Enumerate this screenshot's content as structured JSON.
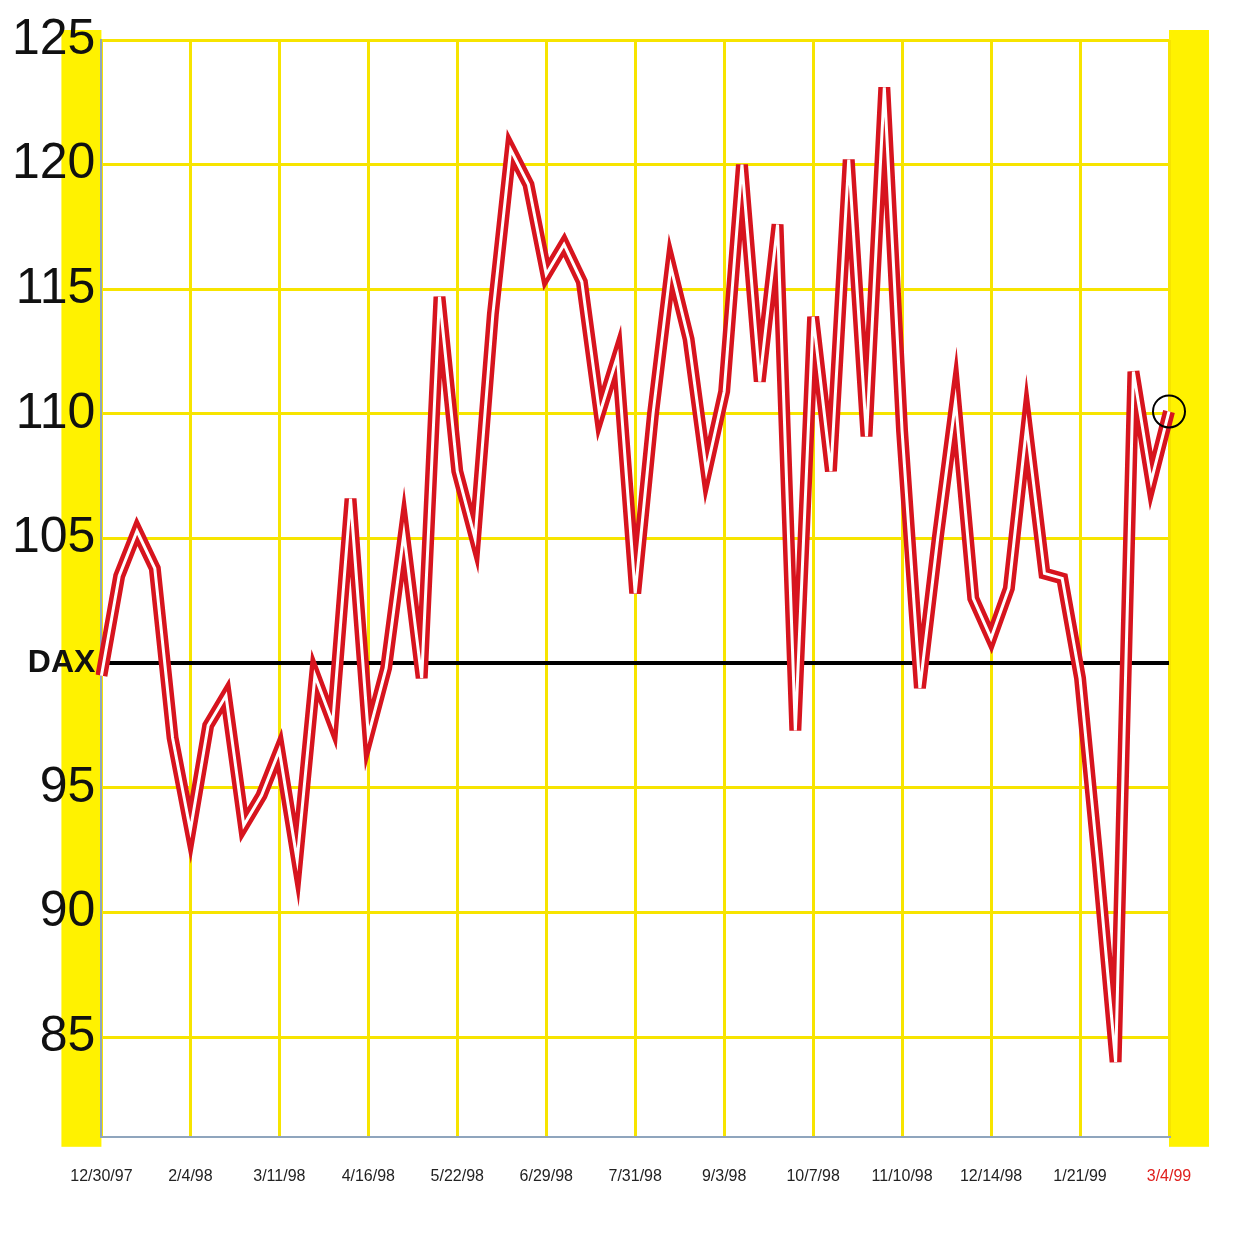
{
  "chart_data": {
    "type": "line",
    "categories": [
      "12/30/97",
      null,
      null,
      null,
      null,
      "2/4/98",
      null,
      null,
      null,
      null,
      "3/11/98",
      null,
      null,
      null,
      null,
      "4/16/98",
      null,
      null,
      null,
      null,
      "5/22/98",
      null,
      null,
      null,
      null,
      "6/29/98",
      null,
      null,
      null,
      null,
      "7/31/98",
      null,
      null,
      null,
      null,
      "9/3/98",
      null,
      null,
      null,
      null,
      "10/7/98",
      null,
      null,
      null,
      null,
      "11/10/98",
      null,
      null,
      null,
      null,
      "12/14/98",
      null,
      null,
      null,
      null,
      "1/21/99",
      null,
      null,
      null,
      null,
      "3/4/99"
    ],
    "values": [
      99.5,
      103.5,
      105.3,
      103.8,
      97,
      93.3,
      97.5,
      98.7,
      93.5,
      94.7,
      96.5,
      92.1,
      99.5,
      97.6,
      106.6,
      97.1,
      99.8,
      105.2,
      99.4,
      114.7,
      107.7,
      105,
      114,
      120.6,
      119.2,
      115.6,
      116.8,
      115.3,
      110,
      112.3,
      102.8,
      110,
      115.9,
      113,
      107.7,
      110.9,
      120,
      111.3,
      117.6,
      97.3,
      113.9,
      107.7,
      120.2,
      109.1,
      123.1,
      109.3,
      99,
      105,
      110.5,
      102.6,
      101,
      103,
      109.5,
      103.6,
      103.4,
      99.4,
      92,
      84,
      111.7,
      107.3,
      110.1
    ],
    "color": "#d7141e",
    "ylim": [
      81,
      125
    ],
    "yticks": [
      85,
      90,
      95,
      {
        "value": 100,
        "label": "DAX"
      },
      105,
      110,
      115,
      120,
      125
    ],
    "grid": true
  }
}
